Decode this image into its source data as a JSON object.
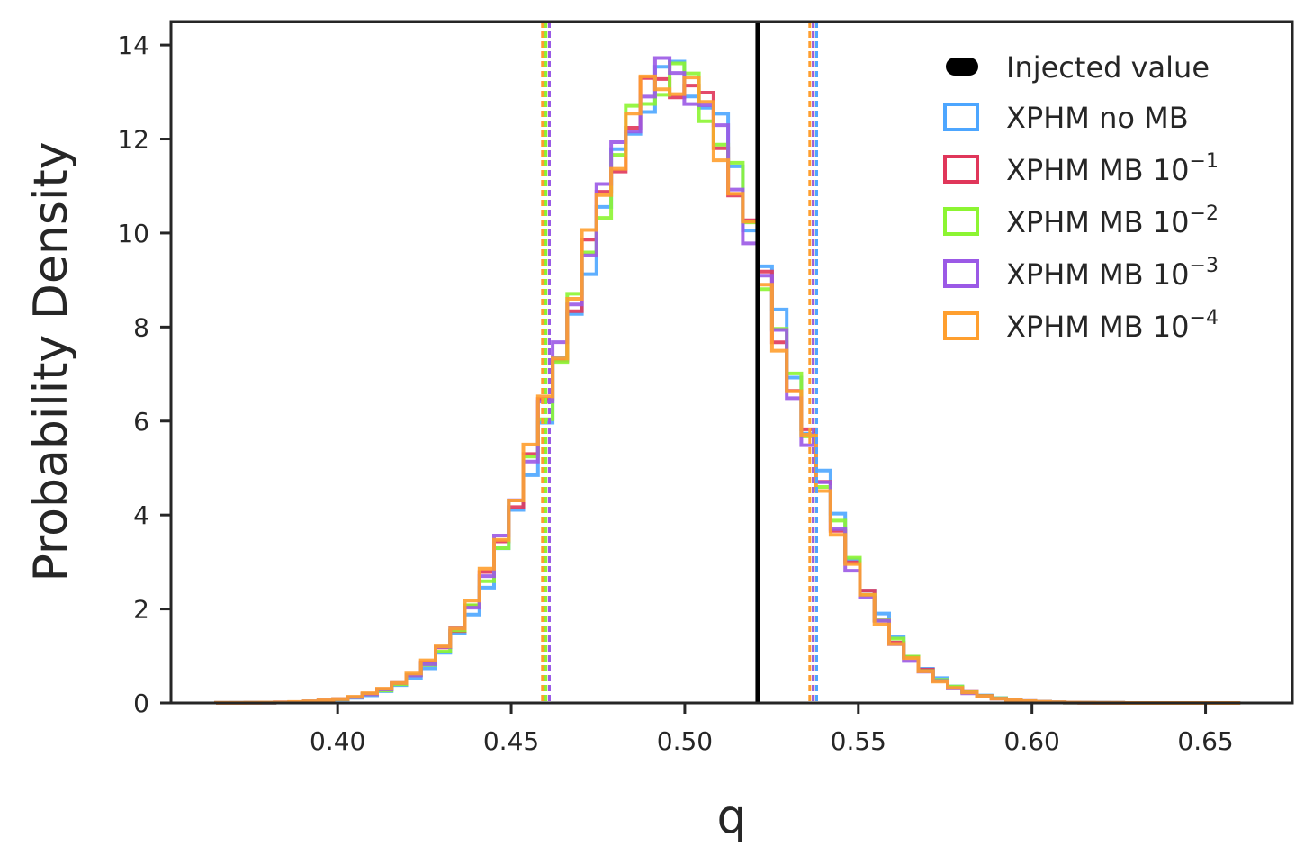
{
  "chart_data": {
    "type": "histogram",
    "title": "",
    "xlabel": "q",
    "ylabel": "Probability Density",
    "xlim": [
      0.352,
      0.675
    ],
    "ylim": [
      0,
      14.5
    ],
    "xticks": [
      0.4,
      0.45,
      0.5,
      0.55,
      0.6,
      0.65
    ],
    "xtick_labels": [
      "0.40",
      "0.45",
      "0.50",
      "0.55",
      "0.60",
      "0.65"
    ],
    "yticks": [
      0,
      2,
      4,
      6,
      8,
      10,
      12,
      14
    ],
    "ytick_labels": [
      "0",
      "2",
      "4",
      "6",
      "8",
      "10",
      "12",
      "14"
    ],
    "grid": false,
    "legend_position": "top-right",
    "injected_value": 0.521,
    "injected_label": "Injected value",
    "series": [
      {
        "name": "XPHM no MB",
        "base": "XPHM no MB",
        "exponent": "",
        "color": "#4DA6FF",
        "mu": 0.4975,
        "sigma": 0.0298,
        "interval": [
          0.461,
          0.538
        ]
      },
      {
        "name": "XPHM MB 10^-1",
        "base": "XPHM MB 10",
        "exponent": "−1",
        "color": "#E0365A",
        "mu": 0.4965,
        "sigma": 0.03,
        "interval": [
          0.46,
          0.537
        ]
      },
      {
        "name": "XPHM MB 10^-2",
        "base": "XPHM MB 10",
        "exponent": "−2",
        "color": "#8CF532",
        "mu": 0.4968,
        "sigma": 0.0299,
        "interval": [
          0.46,
          0.537
        ]
      },
      {
        "name": "XPHM MB 10^-3",
        "base": "XPHM MB 10",
        "exponent": "−3",
        "color": "#9B59E6",
        "mu": 0.4962,
        "sigma": 0.0298,
        "interval": [
          0.461,
          0.537
        ]
      },
      {
        "name": "XPHM MB 10^-4",
        "base": "XPHM MB 10",
        "exponent": "−4",
        "color": "#FF9F2E",
        "mu": 0.496,
        "sigma": 0.03,
        "interval": [
          0.459,
          0.536
        ]
      }
    ],
    "bins": {
      "start": 0.365,
      "end": 0.66,
      "count": 70
    }
  }
}
